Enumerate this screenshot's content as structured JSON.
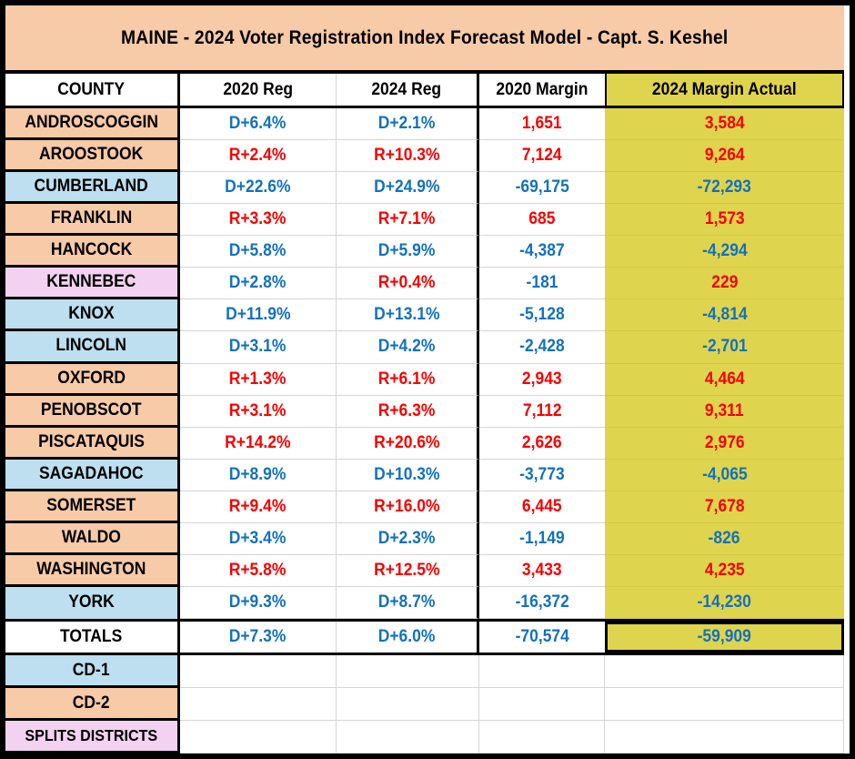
{
  "title": "MAINE -  2024 Voter Registration Index Forecast Model - Capt. S. Keshel",
  "columns": [
    "COUNTY",
    "2020 Reg",
    "2024 Reg",
    "2020 Margin",
    "2024 Margin Actual"
  ],
  "colors": {
    "peach": "#F7CAA8",
    "blue_bg": "#BDDFF0",
    "lavender": "#F2D2F0",
    "yellow": "#DFD44E",
    "text_blue": "#1371BD",
    "text_red": "#F60000",
    "grid_gray": "#D5D5D5"
  },
  "rows": [
    {
      "county": "ANDROSCOGGIN",
      "row_bg": "peach",
      "cells": [
        {
          "text": "D+6.4%",
          "color": "blue"
        },
        {
          "text": "D+2.1%",
          "color": "blue"
        },
        {
          "text": "1,651",
          "color": "red"
        },
        {
          "text": "3,584",
          "color": "red"
        }
      ]
    },
    {
      "county": "AROOSTOOK",
      "row_bg": "peach",
      "cells": [
        {
          "text": "R+2.4%",
          "color": "red"
        },
        {
          "text": "R+10.3%",
          "color": "red"
        },
        {
          "text": "7,124",
          "color": "red"
        },
        {
          "text": "9,264",
          "color": "red"
        }
      ]
    },
    {
      "county": "CUMBERLAND",
      "row_bg": "blue",
      "cells": [
        {
          "text": "D+22.6%",
          "color": "blue"
        },
        {
          "text": "D+24.9%",
          "color": "blue"
        },
        {
          "text": "-69,175",
          "color": "blue"
        },
        {
          "text": "-72,293",
          "color": "blue"
        }
      ]
    },
    {
      "county": "FRANKLIN",
      "row_bg": "peach",
      "cells": [
        {
          "text": "R+3.3%",
          "color": "red"
        },
        {
          "text": "R+7.1%",
          "color": "red"
        },
        {
          "text": "685",
          "color": "red"
        },
        {
          "text": "1,573",
          "color": "red"
        }
      ]
    },
    {
      "county": "HANCOCK",
      "row_bg": "peach",
      "cells": [
        {
          "text": "D+5.8%",
          "color": "blue"
        },
        {
          "text": "D+5.9%",
          "color": "blue"
        },
        {
          "text": "-4,387",
          "color": "blue"
        },
        {
          "text": "-4,294",
          "color": "blue"
        }
      ]
    },
    {
      "county": "KENNEBEC",
      "row_bg": "lavender",
      "cells": [
        {
          "text": "D+2.8%",
          "color": "blue"
        },
        {
          "text": "R+0.4%",
          "color": "red"
        },
        {
          "text": "-181",
          "color": "blue"
        },
        {
          "text": "229",
          "color": "red"
        }
      ]
    },
    {
      "county": "KNOX",
      "row_bg": "blue",
      "cells": [
        {
          "text": "D+11.9%",
          "color": "blue"
        },
        {
          "text": "D+13.1%",
          "color": "blue"
        },
        {
          "text": "-5,128",
          "color": "blue"
        },
        {
          "text": "-4,814",
          "color": "blue"
        }
      ]
    },
    {
      "county": "LINCOLN",
      "row_bg": "blue",
      "cells": [
        {
          "text": "D+3.1%",
          "color": "blue"
        },
        {
          "text": "D+4.2%",
          "color": "blue"
        },
        {
          "text": "-2,428",
          "color": "blue"
        },
        {
          "text": "-2,701",
          "color": "blue"
        }
      ]
    },
    {
      "county": "OXFORD",
      "row_bg": "peach",
      "cells": [
        {
          "text": "R+1.3%",
          "color": "red"
        },
        {
          "text": "R+6.1%",
          "color": "red"
        },
        {
          "text": "2,943",
          "color": "red"
        },
        {
          "text": "4,464",
          "color": "red"
        }
      ]
    },
    {
      "county": "PENOBSCOT",
      "row_bg": "peach",
      "cells": [
        {
          "text": "R+3.1%",
          "color": "red"
        },
        {
          "text": "R+6.3%",
          "color": "red"
        },
        {
          "text": "7,112",
          "color": "red"
        },
        {
          "text": "9,311",
          "color": "red"
        }
      ]
    },
    {
      "county": "PISCATAQUIS",
      "row_bg": "peach",
      "cells": [
        {
          "text": "R+14.2%",
          "color": "red"
        },
        {
          "text": "R+20.6%",
          "color": "red"
        },
        {
          "text": "2,626",
          "color": "red"
        },
        {
          "text": "2,976",
          "color": "red"
        }
      ]
    },
    {
      "county": "SAGADAHOC",
      "row_bg": "blue",
      "cells": [
        {
          "text": "D+8.9%",
          "color": "blue"
        },
        {
          "text": "D+10.3%",
          "color": "blue"
        },
        {
          "text": "-3,773",
          "color": "blue"
        },
        {
          "text": "-4,065",
          "color": "blue"
        }
      ]
    },
    {
      "county": "SOMERSET",
      "row_bg": "peach",
      "cells": [
        {
          "text": "R+9.4%",
          "color": "red"
        },
        {
          "text": "R+16.0%",
          "color": "red"
        },
        {
          "text": "6,445",
          "color": "red"
        },
        {
          "text": "7,678",
          "color": "red"
        }
      ]
    },
    {
      "county": "WALDO",
      "row_bg": "peach",
      "cells": [
        {
          "text": "D+3.4%",
          "color": "blue"
        },
        {
          "text": "D+2.3%",
          "color": "blue"
        },
        {
          "text": "-1,149",
          "color": "blue"
        },
        {
          "text": "-826",
          "color": "blue"
        }
      ]
    },
    {
      "county": "WASHINGTON",
      "row_bg": "peach",
      "cells": [
        {
          "text": "R+5.8%",
          "color": "red"
        },
        {
          "text": "R+12.5%",
          "color": "red"
        },
        {
          "text": "3,433",
          "color": "red"
        },
        {
          "text": "4,235",
          "color": "red"
        }
      ]
    },
    {
      "county": "YORK",
      "row_bg": "blue",
      "cells": [
        {
          "text": "D+9.3%",
          "color": "blue"
        },
        {
          "text": "D+8.7%",
          "color": "blue"
        },
        {
          "text": "-16,372",
          "color": "blue"
        },
        {
          "text": "-14,230",
          "color": "blue"
        }
      ]
    }
  ],
  "totals": {
    "label": "TOTALS",
    "cells": [
      {
        "text": "D+7.3%",
        "color": "blue"
      },
      {
        "text": "D+6.0%",
        "color": "blue"
      },
      {
        "text": "-70,574",
        "color": "blue"
      },
      {
        "text": "-59,909",
        "color": "blue"
      }
    ]
  },
  "footer_rows": [
    {
      "label": "CD-1",
      "row_bg": "blue",
      "cells": [
        "",
        "",
        "",
        ""
      ]
    },
    {
      "label": "CD-2",
      "row_bg": "peach",
      "cells": [
        "",
        "",
        "",
        ""
      ]
    },
    {
      "label": "SPLITS DISTRICTS",
      "row_bg": "lavender",
      "cells": [
        "",
        "",
        "",
        ""
      ]
    }
  ]
}
